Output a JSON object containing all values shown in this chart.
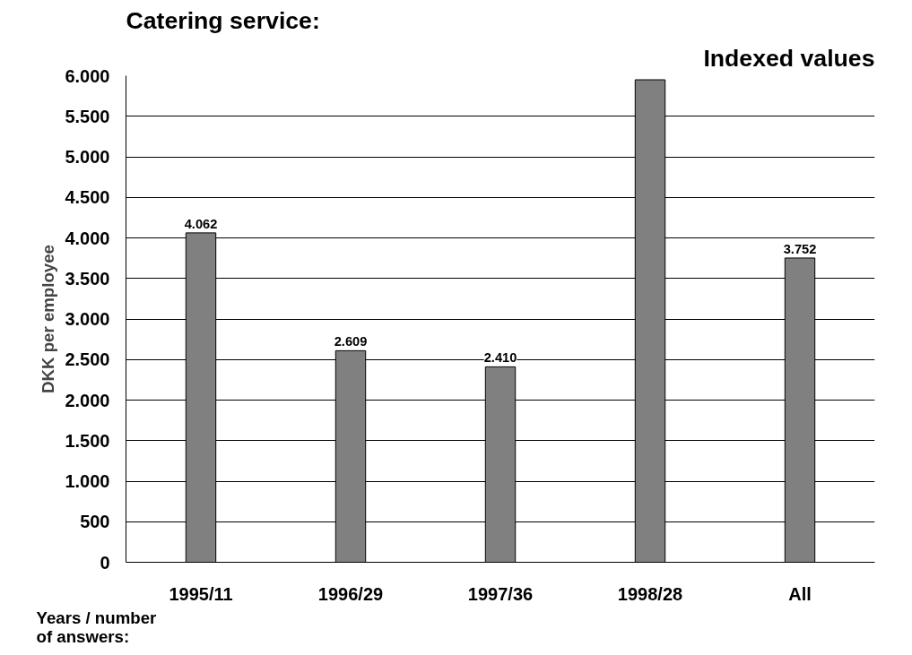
{
  "chart_data": {
    "type": "bar",
    "title": "Catering service:",
    "subtitle": "Indexed values",
    "xlabel": "Years / number of answers:",
    "ylabel": "DKK per employee",
    "categories": [
      "1995/11",
      "1996/29",
      "1997/36",
      "1998/28",
      "All"
    ],
    "values": [
      4062,
      2609,
      2410,
      5950,
      3752
    ],
    "value_labels": [
      "4.062",
      "2.609",
      "2.410",
      null,
      "3.752"
    ],
    "color": "#808080",
    "ylim": [
      0,
      6000
    ],
    "yticks": [
      {
        "value": 0,
        "label": "0"
      },
      {
        "value": 500,
        "label": "500"
      },
      {
        "value": 1000,
        "label": "1.000"
      },
      {
        "value": 1500,
        "label": "1.500"
      },
      {
        "value": 2000,
        "label": "2.000"
      },
      {
        "value": 2500,
        "label": "2.500"
      },
      {
        "value": 3000,
        "label": "3.000"
      },
      {
        "value": 3500,
        "label": "3.500"
      },
      {
        "value": 4000,
        "label": "4.000"
      },
      {
        "value": 4500,
        "label": "4.500"
      },
      {
        "value": 5000,
        "label": "5.000"
      },
      {
        "value": 5500,
        "label": "5.500"
      },
      {
        "value": 6000,
        "label": "6.000"
      }
    ],
    "grid": "y"
  }
}
